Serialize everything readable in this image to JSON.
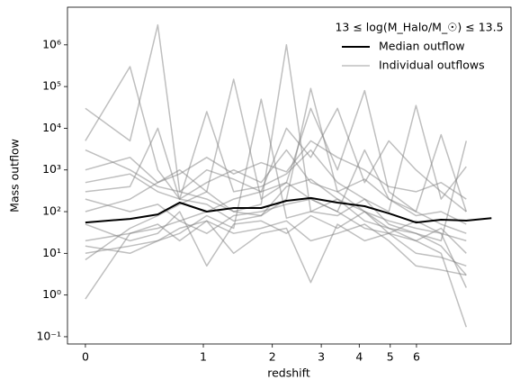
{
  "chart_data": {
    "type": "line",
    "xlabel": "redshift",
    "ylabel": "Mass outflow",
    "xscale": "log1p",
    "yscale": "log",
    "xlim": [
      -0.1,
      11.2
    ],
    "ylim": [
      0.067,
      8000000
    ],
    "xticks": [
      0,
      1,
      2,
      3,
      4,
      5,
      6
    ],
    "yticks": [
      {
        "value": 0.1,
        "label": "10⁻¹"
      },
      {
        "value": 1,
        "label": "10⁰"
      },
      {
        "value": 10,
        "label": "10¹"
      },
      {
        "value": 100,
        "label": "10²"
      },
      {
        "value": 1000,
        "label": "10³"
      },
      {
        "value": 10000,
        "label": "10⁴"
      },
      {
        "value": 100000,
        "label": "10⁵"
      },
      {
        "value": 1000000,
        "label": "10⁶"
      }
    ],
    "legend_title": "13 ≤ log(M_Halo/M_☉) ≤ 13.5",
    "legend": "upper right",
    "x": [
      0,
      0.3,
      0.53,
      0.74,
      1.04,
      1.39,
      1.81,
      2.26,
      2.76,
      3.4,
      4.16,
      4.95,
      5.98,
      7.09,
      8.38,
      9.88
    ],
    "series": [
      {
        "name": "Median outflow",
        "color": "#000000",
        "values": [
          55,
          67,
          86,
          165,
          100,
          122,
          122,
          182,
          212,
          165,
          135,
          91,
          55,
          64,
          61,
          70
        ]
      },
      {
        "name": "Individual outflows",
        "color": "#808080",
        "lines": [
          [
            30000,
            5000,
            3000000,
            300,
            200,
            100,
            150,
            1000000,
            100,
            80,
            200,
            50,
            30,
            20,
            5000,
            null
          ],
          [
            5000,
            300000,
            1000,
            200,
            150,
            60,
            80,
            200,
            90000,
            300,
            100,
            40,
            30,
            15,
            3,
            null
          ],
          [
            0.8,
            30,
            50,
            20,
            60,
            10,
            30,
            40,
            2,
            50,
            20,
            30,
            60,
            30,
            1.5,
            null
          ],
          [
            100,
            200,
            500,
            1000,
            300,
            150000,
            200,
            500,
            30000,
            1000,
            80000,
            300,
            100,
            7000,
            100,
            null
          ],
          [
            10,
            15,
            20,
            30,
            80,
            40,
            50000,
            70,
            100,
            200,
            60,
            40,
            20,
            10,
            0.17,
            null
          ],
          [
            300,
            400,
            10000,
            200,
            25000,
            300,
            400,
            800,
            3000,
            500,
            200,
            100,
            35000,
            200,
            1200,
            null
          ],
          [
            20,
            30,
            40,
            60,
            100,
            200,
            300,
            500,
            200,
            100,
            40,
            30,
            10,
            8,
            5,
            null
          ],
          [
            500,
            800,
            300,
            200,
            500,
            1000,
            500,
            3000,
            500,
            300,
            600,
            200,
            100,
            50,
            30,
            null
          ],
          [
            50,
            20,
            30,
            100,
            5,
            50,
            60,
            30,
            80,
            40,
            100,
            30,
            20,
            40,
            10,
            null
          ],
          [
            7,
            40,
            80,
            150,
            300,
            100,
            80,
            400,
            600,
            200,
            100,
            60,
            40,
            30,
            20,
            null
          ],
          [
            1000,
            2000,
            500,
            800,
            2000,
            800,
            1500,
            900,
            5000,
            2000,
            1000,
            400,
            300,
            500,
            200,
            null
          ],
          [
            200,
            100,
            150,
            60,
            30,
            80,
            100,
            150,
            200,
            100,
            3000,
            200,
            80,
            100,
            50,
            null
          ],
          [
            15,
            10,
            20,
            40,
            60,
            30,
            40,
            60,
            20,
            30,
            50,
            20,
            5,
            4,
            3,
            null
          ],
          [
            3000,
            1000,
            400,
            300,
            1000,
            600,
            300,
            10000,
            2000,
            30000,
            500,
            5000,
            1000,
            300,
            100,
            null
          ]
        ]
      }
    ]
  }
}
